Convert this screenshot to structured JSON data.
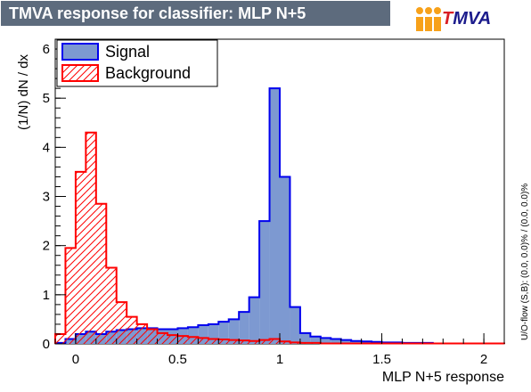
{
  "title": "TMVA response for classifier: MLP N+5",
  "logo_text": "TMVA",
  "side_note": "U/O-flow (S,B): (0.0, 0.0)% / (0.0, 0.0)%",
  "colors": {
    "title_bg": "#5d6b7d",
    "signal_fill": "#7d99d1",
    "signal_line": "#0000ee",
    "background_line": "#ff0000",
    "logo_orange": "#f7a11a"
  },
  "chart_data": {
    "type": "histogram",
    "xlabel": "MLP N+5 response",
    "ylabel": "(1/N) dN / dx",
    "xlim": [
      -0.1,
      2.1
    ],
    "ylim": [
      0,
      6.2
    ],
    "x_ticks": [
      "0",
      "0.5",
      "1",
      "1.5",
      "2"
    ],
    "y_ticks": [
      "0",
      "1",
      "2",
      "3",
      "4",
      "5",
      "6"
    ],
    "legend_position": "top-left",
    "bin_edges": [
      -0.1,
      -0.05,
      0.0,
      0.05,
      0.1,
      0.15,
      0.2,
      0.25,
      0.3,
      0.35,
      0.4,
      0.45,
      0.5,
      0.55,
      0.6,
      0.65,
      0.7,
      0.75,
      0.8,
      0.85,
      0.9,
      0.95,
      1.0,
      1.05,
      1.1,
      1.15,
      1.2,
      1.25,
      1.3,
      1.35,
      1.4,
      1.45,
      1.5,
      1.55,
      1.6,
      1.65,
      1.7,
      1.75,
      1.8,
      1.85,
      1.9,
      1.95,
      2.0,
      2.05,
      2.1
    ],
    "series": [
      {
        "name": "Signal",
        "style": "filled",
        "values": [
          0.02,
          0.1,
          0.2,
          0.25,
          0.2,
          0.25,
          0.28,
          0.3,
          0.32,
          0.32,
          0.3,
          0.3,
          0.32,
          0.34,
          0.38,
          0.4,
          0.45,
          0.5,
          0.65,
          0.95,
          2.5,
          5.2,
          3.4,
          0.75,
          0.22,
          0.15,
          0.12,
          0.1,
          0.08,
          0.06,
          0.05,
          0.04,
          0.03,
          0.03,
          0.02,
          0.02,
          0.02,
          0.01,
          0.01,
          0.01,
          0.01,
          0.01,
          0.01,
          0.01
        ]
      },
      {
        "name": "Background",
        "style": "hatched",
        "values": [
          0.2,
          1.95,
          3.5,
          4.3,
          2.85,
          1.55,
          0.85,
          0.55,
          0.4,
          0.3,
          0.22,
          0.18,
          0.16,
          0.14,
          0.12,
          0.1,
          0.09,
          0.08,
          0.07,
          0.06,
          0.08,
          0.1,
          0.05,
          0.03,
          0.02,
          0.02,
          0.01,
          0.01,
          0.01,
          0.01,
          0.01,
          0.01,
          0.01,
          0.01,
          0.01,
          0.01,
          0.01,
          0.01,
          0.01,
          0.01,
          0.01,
          0.01,
          0.01,
          0.01
        ]
      }
    ]
  }
}
